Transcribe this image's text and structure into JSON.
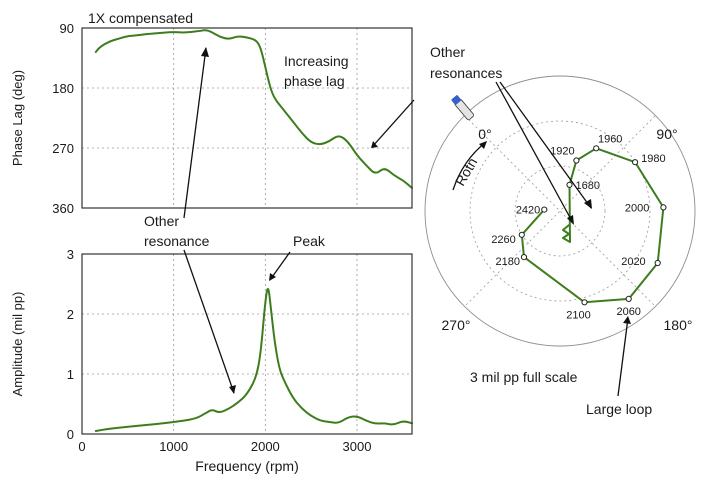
{
  "chart_data": [
    {
      "type": "line",
      "title": "",
      "xlabel": "",
      "ylabel": "Phase Lag (deg)",
      "xlim": [
        0,
        3600
      ],
      "ylim": [
        90,
        360
      ],
      "y_inverted": true,
      "grid": true,
      "x_ticks": [
        "0",
        "1000",
        "2000",
        "3000"
      ],
      "x_tick_values": [
        0,
        1000,
        2000,
        3000
      ],
      "y_ticks": [
        "90",
        "180",
        "270",
        "360"
      ],
      "y_tick_values": [
        90,
        180,
        270,
        360
      ],
      "series": [
        {
          "name": "1X compensated",
          "color": "#3e7d1e",
          "x": [
            150,
            200,
            300,
            400,
            500,
            600,
            700,
            800,
            900,
            1000,
            1100,
            1200,
            1300,
            1350,
            1400,
            1500,
            1600,
            1700,
            1800,
            1900,
            1950,
            2000,
            2050,
            2100,
            2200,
            2300,
            2400,
            2500,
            2600,
            2700,
            2800,
            2900,
            3000,
            3100,
            3200,
            3300,
            3400,
            3500,
            3600
          ],
          "y": [
            126,
            118,
            110,
            106,
            102,
            101,
            99,
            98,
            97,
            96,
            97,
            96,
            94,
            93,
            95,
            103,
            107,
            102,
            104,
            108,
            120,
            148,
            178,
            196,
            213,
            230,
            248,
            262,
            265,
            260,
            250,
            260,
            281,
            296,
            310,
            299,
            311,
            318,
            330
          ]
        }
      ],
      "annotations": [
        "1X compensated",
        "Increasing phase lag",
        "Other resonance"
      ]
    },
    {
      "type": "line",
      "title": "",
      "xlabel": "Frequency (rpm)",
      "ylabel": "Amplitude (mil pp)",
      "xlim": [
        0,
        3600
      ],
      "ylim": [
        0,
        3
      ],
      "grid": true,
      "x_ticks": [
        "0",
        "1000",
        "2000",
        "3000"
      ],
      "x_tick_values": [
        0,
        1000,
        2000,
        3000
      ],
      "y_ticks": [
        "0",
        "1",
        "2",
        "3"
      ],
      "y_tick_values": [
        0,
        1,
        2,
        3
      ],
      "series": [
        {
          "name": "",
          "color": "#3e7d1e",
          "x": [
            150,
            300,
            500,
            700,
            900,
            1100,
            1250,
            1350,
            1420,
            1500,
            1600,
            1700,
            1800,
            1900,
            1950,
            2000,
            2030,
            2060,
            2100,
            2150,
            2200,
            2300,
            2400,
            2500,
            2600,
            2700,
            2800,
            2900,
            3000,
            3100,
            3200,
            3300,
            3400,
            3500,
            3600
          ],
          "y": [
            0.05,
            0.09,
            0.12,
            0.15,
            0.18,
            0.22,
            0.26,
            0.35,
            0.41,
            0.35,
            0.42,
            0.52,
            0.66,
            0.94,
            1.35,
            2.22,
            2.5,
            2.1,
            1.55,
            1.1,
            0.9,
            0.6,
            0.42,
            0.3,
            0.22,
            0.2,
            0.18,
            0.28,
            0.3,
            0.22,
            0.17,
            0.18,
            0.15,
            0.22,
            0.18
          ]
        }
      ],
      "annotations": [
        "Peak",
        "Other resonance"
      ]
    },
    {
      "type": "scatter",
      "polar": true,
      "title": "",
      "angle_labels": [
        "0°",
        "90°",
        "180°",
        "270°"
      ],
      "angle_values": [
        0,
        90,
        180,
        270
      ],
      "rotation_label": "Rotn",
      "full_scale": 3,
      "scale_label": "3 mil pp full scale",
      "series": [
        {
          "name": "",
          "color": "#3e7d1e",
          "rpm_labels": [
            "1680",
            "1920",
            "1960",
            "1980",
            "2000",
            "2020",
            "2060",
            "2100",
            "2180",
            "2260",
            "2420"
          ],
          "amplitude": [
            0.62,
            1.18,
            1.61,
            1.99,
            2.3,
            2.46,
            2.48,
            2.1,
            1.3,
            1.0,
            0.35
          ],
          "phase_deg": [
            20,
            18,
            30,
            57,
            88,
            118,
            142,
            165,
            218,
            238,
            275
          ]
        }
      ],
      "annotations": [
        "Other resonances",
        "Large loop"
      ]
    }
  ]
}
